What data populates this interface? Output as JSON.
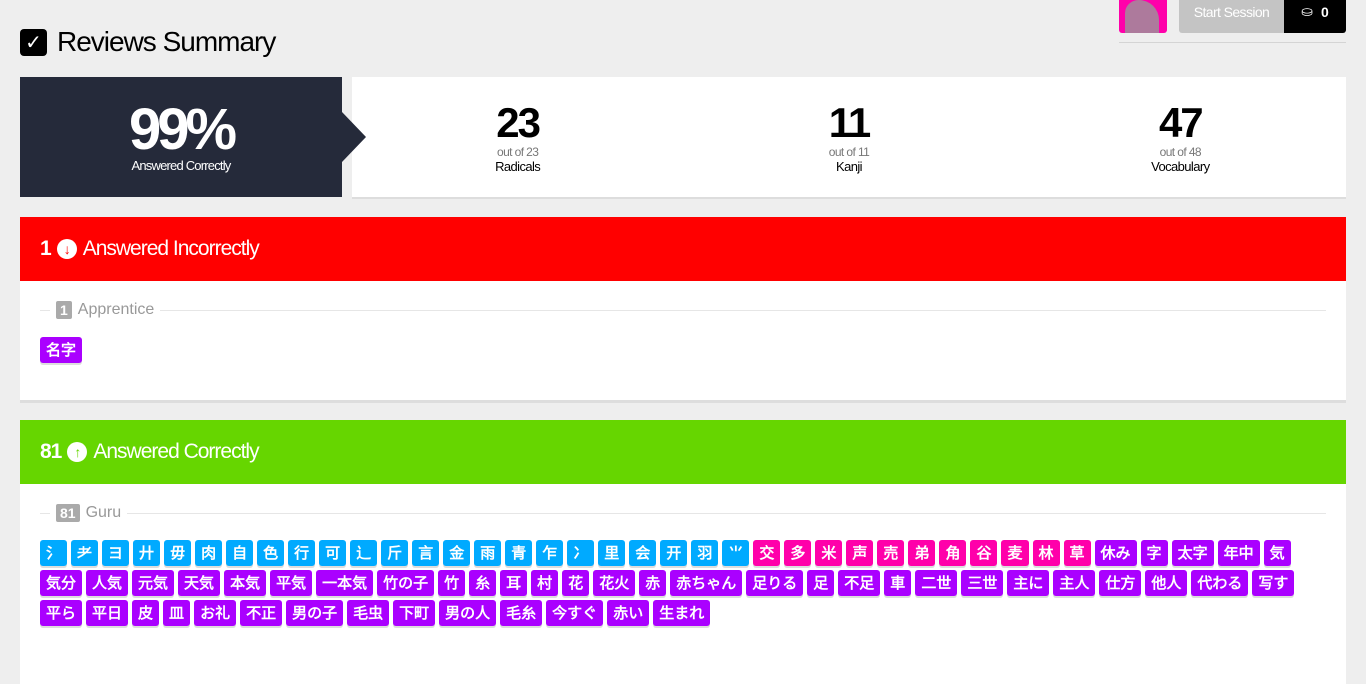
{
  "header": {
    "title": "Reviews Summary",
    "start_session": "Start Session",
    "inbox_count": "0",
    "icon": "inbox-icon"
  },
  "summary": {
    "percent": "99%",
    "percent_label": "Answered Correctly",
    "counts": [
      {
        "value": "23",
        "out_of": "out of 23",
        "label": "Radicals"
      },
      {
        "value": "11",
        "out_of": "out of 11",
        "label": "Kanji"
      },
      {
        "value": "47",
        "out_of": "out of 48",
        "label": "Vocabulary"
      }
    ]
  },
  "colors": {
    "radical": "#00aaff",
    "kanji": "#ff00aa",
    "vocabulary": "#aa00ff",
    "incorrect": "#ff0000",
    "correct": "#66d600",
    "summary_dark": "#252a3a"
  },
  "incorrect": {
    "count": "1",
    "label": "Answered Incorrectly",
    "level_count": "1",
    "level": "Apprentice",
    "items": [
      {
        "text": "名字",
        "type": "v"
      }
    ]
  },
  "correct": {
    "count": "81",
    "label": "Answered Correctly",
    "level_count": "81",
    "level": "Guru",
    "radicals": [
      "氵",
      "耂",
      "ヨ",
      "廾",
      "毋",
      "肉",
      "自",
      "色",
      "行",
      "可",
      "辶",
      "斤",
      "言",
      "金",
      "雨",
      "青",
      "乍",
      "冫",
      "里",
      "会",
      "开",
      "羽",
      "⺌"
    ],
    "kanji": [
      "交",
      "多",
      "米",
      "声",
      "売",
      "弟",
      "角",
      "谷",
      "麦",
      "林",
      "草"
    ],
    "vocabulary": [
      "休み",
      "字",
      "太字",
      "年中",
      "気",
      "気分",
      "人気",
      "元気",
      "天気",
      "本気",
      "平気",
      "一本気",
      "竹の子",
      "竹",
      "糸",
      "耳",
      "村",
      "花",
      "花火",
      "赤",
      "赤ちゃん",
      "足りる",
      "足",
      "不足",
      "車",
      "二世",
      "三世",
      "主に",
      "主人",
      "仕方",
      "他人",
      "代わる",
      "写す",
      "平ら",
      "平日",
      "皮",
      "皿",
      "お礼",
      "不正",
      "男の子",
      "毛虫",
      "下町",
      "男の人",
      "毛糸",
      "今すぐ",
      "赤い",
      "生まれ"
    ]
  }
}
